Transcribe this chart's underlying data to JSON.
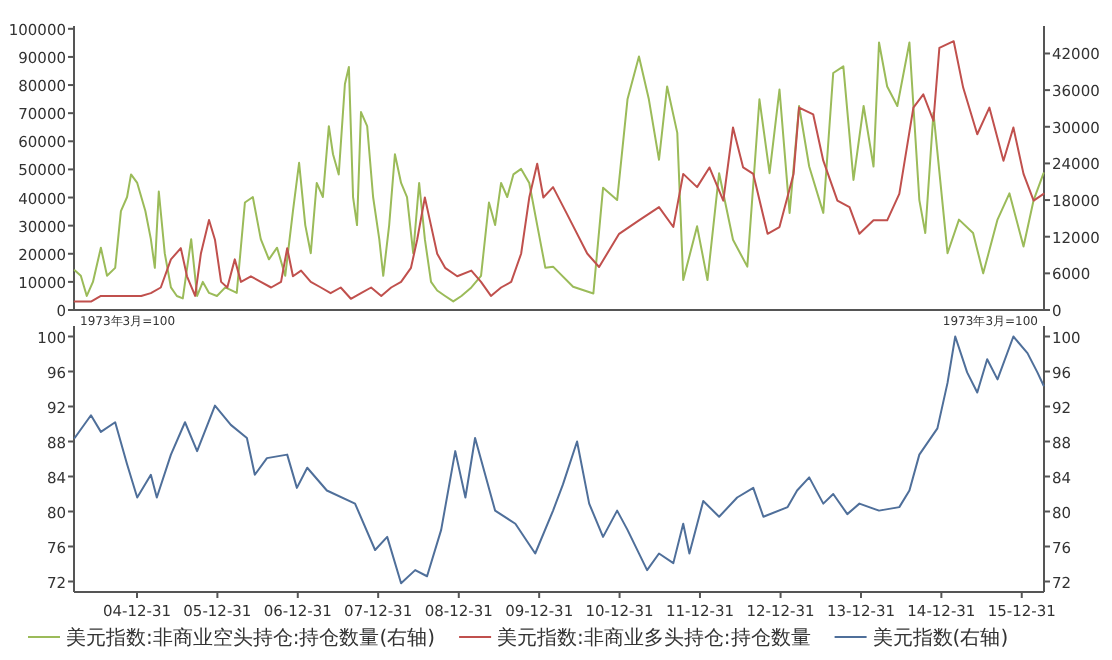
{
  "chart_data": [
    {
      "type": "line",
      "xlim": [
        "2004-03-20",
        "2016-04-10"
      ],
      "ylim": [
        0,
        101000
      ],
      "yticks": [
        0,
        10000,
        20000,
        30000,
        40000,
        50000,
        60000,
        70000,
        80000,
        90000,
        100000
      ],
      "y2lim": [
        0,
        46500
      ],
      "y2ticks": [
        0,
        6000,
        12000,
        18000,
        24000,
        30000,
        36000,
        42000
      ],
      "tick_labels": "y",
      "legend": "bottom",
      "line_style": "solid",
      "series": [
        {
          "name": "美元指数:非商业空头持仓:持仓数量(右轴)",
          "color": "#9bbb59",
          "axis": "y2",
          "x": [
            "2004-03-23",
            "2004-04-20",
            "2004-05-17",
            "2004-06-14",
            "2004-07-20",
            "2004-08-17",
            "2004-09-23",
            "2004-10-19",
            "2004-11-16",
            "2004-12-04",
            "2005-01-01",
            "2005-02-07",
            "2005-03-04",
            "2005-03-22",
            "2005-04-09",
            "2005-05-06",
            "2005-06-03",
            "2005-06-30",
            "2005-07-27",
            "2005-09-03",
            "2005-09-30",
            "2005-10-26",
            "2005-11-23",
            "2005-12-29",
            "2006-02-05",
            "2006-03-29",
            "2006-05-05",
            "2006-06-10",
            "2006-07-16",
            "2006-08-22",
            "2006-09-28",
            "2006-11-04",
            "2006-12-09",
            "2007-01-06",
            "2007-02-03",
            "2007-02-28",
            "2007-03-27",
            "2007-04-24",
            "2007-05-21",
            "2007-06-09",
            "2007-07-05",
            "2007-08-02",
            "2007-08-20",
            "2007-09-08",
            "2007-09-26",
            "2007-10-14",
            "2007-11-11",
            "2007-12-08",
            "2008-01-05",
            "2008-01-23",
            "2008-02-19",
            "2008-03-16",
            "2008-04-13",
            "2008-05-10",
            "2008-06-07",
            "2008-07-04",
            "2008-07-30",
            "2008-08-27",
            "2008-09-24",
            "2008-10-30",
            "2008-12-06",
            "2009-01-12",
            "2009-02-26",
            "2009-04-11",
            "2009-05-17",
            "2009-06-14",
            "2009-07-11",
            "2009-08-08",
            "2009-09-05",
            "2009-10-10",
            "2009-11-16",
            "2009-12-22",
            "2010-01-28",
            "2010-03-04",
            "2010-06-03",
            "2010-09-03",
            "2010-10-17",
            "2010-12-20",
            "2011-02-05",
            "2011-03-29",
            "2011-05-13",
            "2011-06-28",
            "2011-08-04",
            "2011-09-19",
            "2011-10-16",
            "2011-12-18",
            "2012-02-03",
            "2012-03-27",
            "2012-05-29",
            "2012-08-02",
            "2012-09-26",
            "2012-11-11",
            "2012-12-26",
            "2013-02-10",
            "2013-03-25",
            "2013-05-10",
            "2013-07-13",
            "2013-08-27",
            "2013-10-12",
            "2013-11-27",
            "2014-01-12",
            "2014-02-26",
            "2014-03-23",
            "2014-04-29",
            "2014-06-14",
            "2014-08-08",
            "2014-09-22",
            "2014-10-19",
            "2014-11-25",
            "2015-01-28",
            "2015-03-21",
            "2015-05-24",
            "2015-07-09",
            "2015-09-12",
            "2015-11-05",
            "2016-01-08",
            "2016-02-23",
            "2016-04-08"
          ],
          "values": [
            6500,
            5600,
            2300,
            4600,
            10200,
            5600,
            6900,
            16200,
            18500,
            22200,
            20800,
            16200,
            11600,
            6900,
            19400,
            9300,
            3700,
            2300,
            1900,
            11600,
            2300,
            4600,
            2800,
            2300,
            3700,
            2800,
            17600,
            18500,
            11600,
            8300,
            10200,
            5600,
            16200,
            24100,
            13900,
            9300,
            20800,
            18500,
            30100,
            25500,
            22200,
            37000,
            39800,
            18500,
            13900,
            32400,
            30100,
            18500,
            11600,
            5600,
            13900,
            25500,
            20800,
            18500,
            9300,
            20800,
            11600,
            4600,
            3200,
            2300,
            1400,
            2300,
            3700,
            5600,
            17600,
            13900,
            20800,
            18500,
            22200,
            23100,
            20800,
            13900,
            6900,
            7100,
            3800,
            2700,
            20000,
            18000,
            34500,
            41500,
            34500,
            24600,
            36600,
            29000,
            4900,
            13700,
            4900,
            22400,
            11500,
            7100,
            34500,
            22400,
            36100,
            15900,
            33400,
            23500,
            15900,
            38800,
            39900,
            21300,
            33400,
            23500,
            43800,
            36600,
            33400,
            43800,
            18000,
            12600,
            32300,
            9300,
            14800,
            12600,
            6000,
            14800,
            19100,
            10400,
            18000,
            22400
          ]
        },
        {
          "name": "美元指数:非商业多头持仓:持仓数量",
          "color": "#c0504d",
          "axis": "y",
          "x": [
            "2004-03-23",
            "2004-06-05",
            "2004-07-20",
            "2004-10-19",
            "2005-01-19",
            "2005-03-04",
            "2005-04-18",
            "2005-06-03",
            "2005-07-18",
            "2005-08-15",
            "2005-09-21",
            "2005-10-17",
            "2005-11-23",
            "2005-12-20",
            "2006-01-17",
            "2006-02-14",
            "2006-03-20",
            "2006-04-17",
            "2006-06-01",
            "2006-07-16",
            "2006-09-01",
            "2006-10-16",
            "2006-11-13",
            "2006-12-09",
            "2007-01-15",
            "2007-02-28",
            "2007-04-15",
            "2007-05-29",
            "2007-07-14",
            "2007-08-29",
            "2007-10-14",
            "2007-11-29",
            "2008-01-14",
            "2008-02-28",
            "2008-04-13",
            "2008-05-28",
            "2008-06-25",
            "2008-07-30",
            "2008-08-27",
            "2008-09-24",
            "2008-10-30",
            "2008-12-24",
            "2009-02-26",
            "2009-04-11",
            "2009-05-26",
            "2009-07-11",
            "2009-08-26",
            "2009-10-10",
            "2009-11-16",
            "2009-12-22",
            "2010-01-19",
            "2010-03-04",
            "2010-05-06",
            "2010-08-06",
            "2010-09-29",
            "2010-12-29",
            "2011-03-29",
            "2011-06-28",
            "2011-09-01",
            "2011-10-16",
            "2011-12-18",
            "2012-02-12",
            "2012-04-15",
            "2012-05-29",
            "2012-07-14",
            "2012-08-29",
            "2012-11-02",
            "2012-12-26",
            "2013-02-28",
            "2013-03-25",
            "2013-05-28",
            "2013-07-13",
            "2013-09-15",
            "2013-11-09",
            "2013-12-24",
            "2014-02-26",
            "2014-04-29",
            "2014-06-23",
            "2014-08-26",
            "2014-10-10",
            "2014-11-25",
            "2014-12-22",
            "2015-02-25",
            "2015-04-09",
            "2015-06-12",
            "2015-08-06",
            "2015-10-09",
            "2015-11-23",
            "2016-01-08",
            "2016-02-23",
            "2016-04-08"
          ],
          "values": [
            3000,
            3000,
            5000,
            5000,
            5000,
            6000,
            8000,
            18000,
            22000,
            12000,
            5000,
            20000,
            32000,
            25000,
            10000,
            8000,
            18000,
            10000,
            12000,
            10000,
            8000,
            10000,
            22000,
            12000,
            14000,
            10000,
            8000,
            6000,
            8000,
            4000,
            6000,
            8000,
            5000,
            8000,
            10000,
            15000,
            25000,
            40000,
            30000,
            20000,
            15000,
            12000,
            14000,
            10000,
            5000,
            8000,
            10000,
            20000,
            40000,
            52000,
            40000,
            43700,
            34200,
            20100,
            15300,
            27100,
            31900,
            36600,
            29500,
            48400,
            43700,
            50700,
            38900,
            64900,
            50700,
            48400,
            27100,
            29500,
            48400,
            72000,
            69600,
            53100,
            38900,
            36600,
            27100,
            31900,
            31900,
            41300,
            72000,
            76700,
            67300,
            93200,
            95600,
            79100,
            62500,
            72000,
            53100,
            64900,
            48400,
            38900,
            41300
          ]
        }
      ]
    },
    {
      "type": "line",
      "xlim": [
        "2004-03-20",
        "2016-04-10"
      ],
      "ylim": [
        70.8,
        101.2
      ],
      "yticks": [
        72,
        76,
        80,
        84,
        88,
        92,
        96,
        100
      ],
      "y2lim": [
        70.8,
        101.2
      ],
      "y2ticks": [
        72,
        76,
        80,
        84,
        88,
        92,
        96,
        100
      ],
      "xticks": [
        {
          "value": "2004-12-31",
          "label": "04-12-31"
        },
        {
          "value": "2005-12-31",
          "label": "05-12-31"
        },
        {
          "value": "2006-12-31",
          "label": "06-12-31"
        },
        {
          "value": "2007-12-31",
          "label": "07-12-31"
        },
        {
          "value": "2008-12-31",
          "label": "08-12-31"
        },
        {
          "value": "2009-12-31",
          "label": "09-12-31"
        },
        {
          "value": "2010-12-31",
          "label": "10-12-31"
        },
        {
          "value": "2011-12-31",
          "label": "11-12-31"
        },
        {
          "value": "2012-12-31",
          "label": "12-12-31"
        },
        {
          "value": "2013-12-31",
          "label": "13-12-31"
        },
        {
          "value": "2014-12-31",
          "label": "14-12-31"
        },
        {
          "value": "2015-12-31",
          "label": "15-12-31"
        }
      ],
      "legend": "bottom",
      "line_style": "solid",
      "annotations": [
        "1973年3月=100",
        "1973年3月=100"
      ],
      "series": [
        {
          "name": "美元指数(右轴)",
          "color": "#4f6f9a",
          "axis": "y2",
          "x": [
            "2004-03-23",
            "2004-06-05",
            "2004-07-20",
            "2004-09-23",
            "2004-11-16",
            "2005-01-01",
            "2005-03-04",
            "2005-03-31",
            "2005-06-03",
            "2005-08-06",
            "2005-09-30",
            "2005-12-20",
            "2006-03-02",
            "2006-05-14",
            "2006-06-19",
            "2006-08-13",
            "2006-11-13",
            "2006-12-27",
            "2007-02-12",
            "2007-05-12",
            "2007-09-17",
            "2007-12-17",
            "2008-02-10",
            "2008-04-13",
            "2008-06-16",
            "2008-08-09",
            "2008-10-12",
            "2008-12-15",
            "2009-01-30",
            "2009-03-15",
            "2009-06-14",
            "2009-09-14",
            "2009-12-13",
            "2010-03-04",
            "2010-04-18",
            "2010-06-21",
            "2010-08-15",
            "2010-10-17",
            "2010-12-20",
            "2011-02-05",
            "2011-05-05",
            "2011-06-28",
            "2011-09-01",
            "2011-10-16",
            "2011-11-13",
            "2012-01-15",
            "2012-03-27",
            "2012-06-17",
            "2012-08-29",
            "2012-10-14",
            "2013-02-01",
            "2013-03-16",
            "2013-05-10",
            "2013-07-13",
            "2013-08-27",
            "2013-10-30",
            "2013-12-24",
            "2014-03-23",
            "2014-06-23",
            "2014-08-08",
            "2014-09-22",
            "2014-12-13",
            "2015-01-28",
            "2015-03-04",
            "2015-04-27",
            "2015-06-12",
            "2015-07-27",
            "2015-09-12",
            "2015-11-23",
            "2016-01-26",
            "2016-03-11",
            "2016-04-08"
          ],
          "values": [
            88.4,
            91,
            89.1,
            90.2,
            85.4,
            81.6,
            84.2,
            81.6,
            86.5,
            90.2,
            86.9,
            92.1,
            89.9,
            88.4,
            84.2,
            86.1,
            86.5,
            82.7,
            85,
            82.4,
            80.9,
            75.6,
            77.1,
            71.8,
            73.3,
            72.6,
            77.9,
            86.9,
            81.6,
            88.4,
            80.1,
            78.6,
            75.2,
            80.1,
            83.1,
            88,
            80.9,
            77.1,
            80.1,
            77.9,
            73.3,
            75.2,
            74.1,
            78.6,
            75.2,
            81.2,
            79.4,
            81.6,
            82.7,
            79.4,
            80.5,
            82.4,
            83.9,
            80.9,
            82,
            79.7,
            80.9,
            80.1,
            80.5,
            82.4,
            86.5,
            89.5,
            94.7,
            100,
            95.9,
            93.6,
            97.4,
            95.1,
            100,
            98.1,
            95.9,
            94.4
          ]
        }
      ]
    }
  ]
}
